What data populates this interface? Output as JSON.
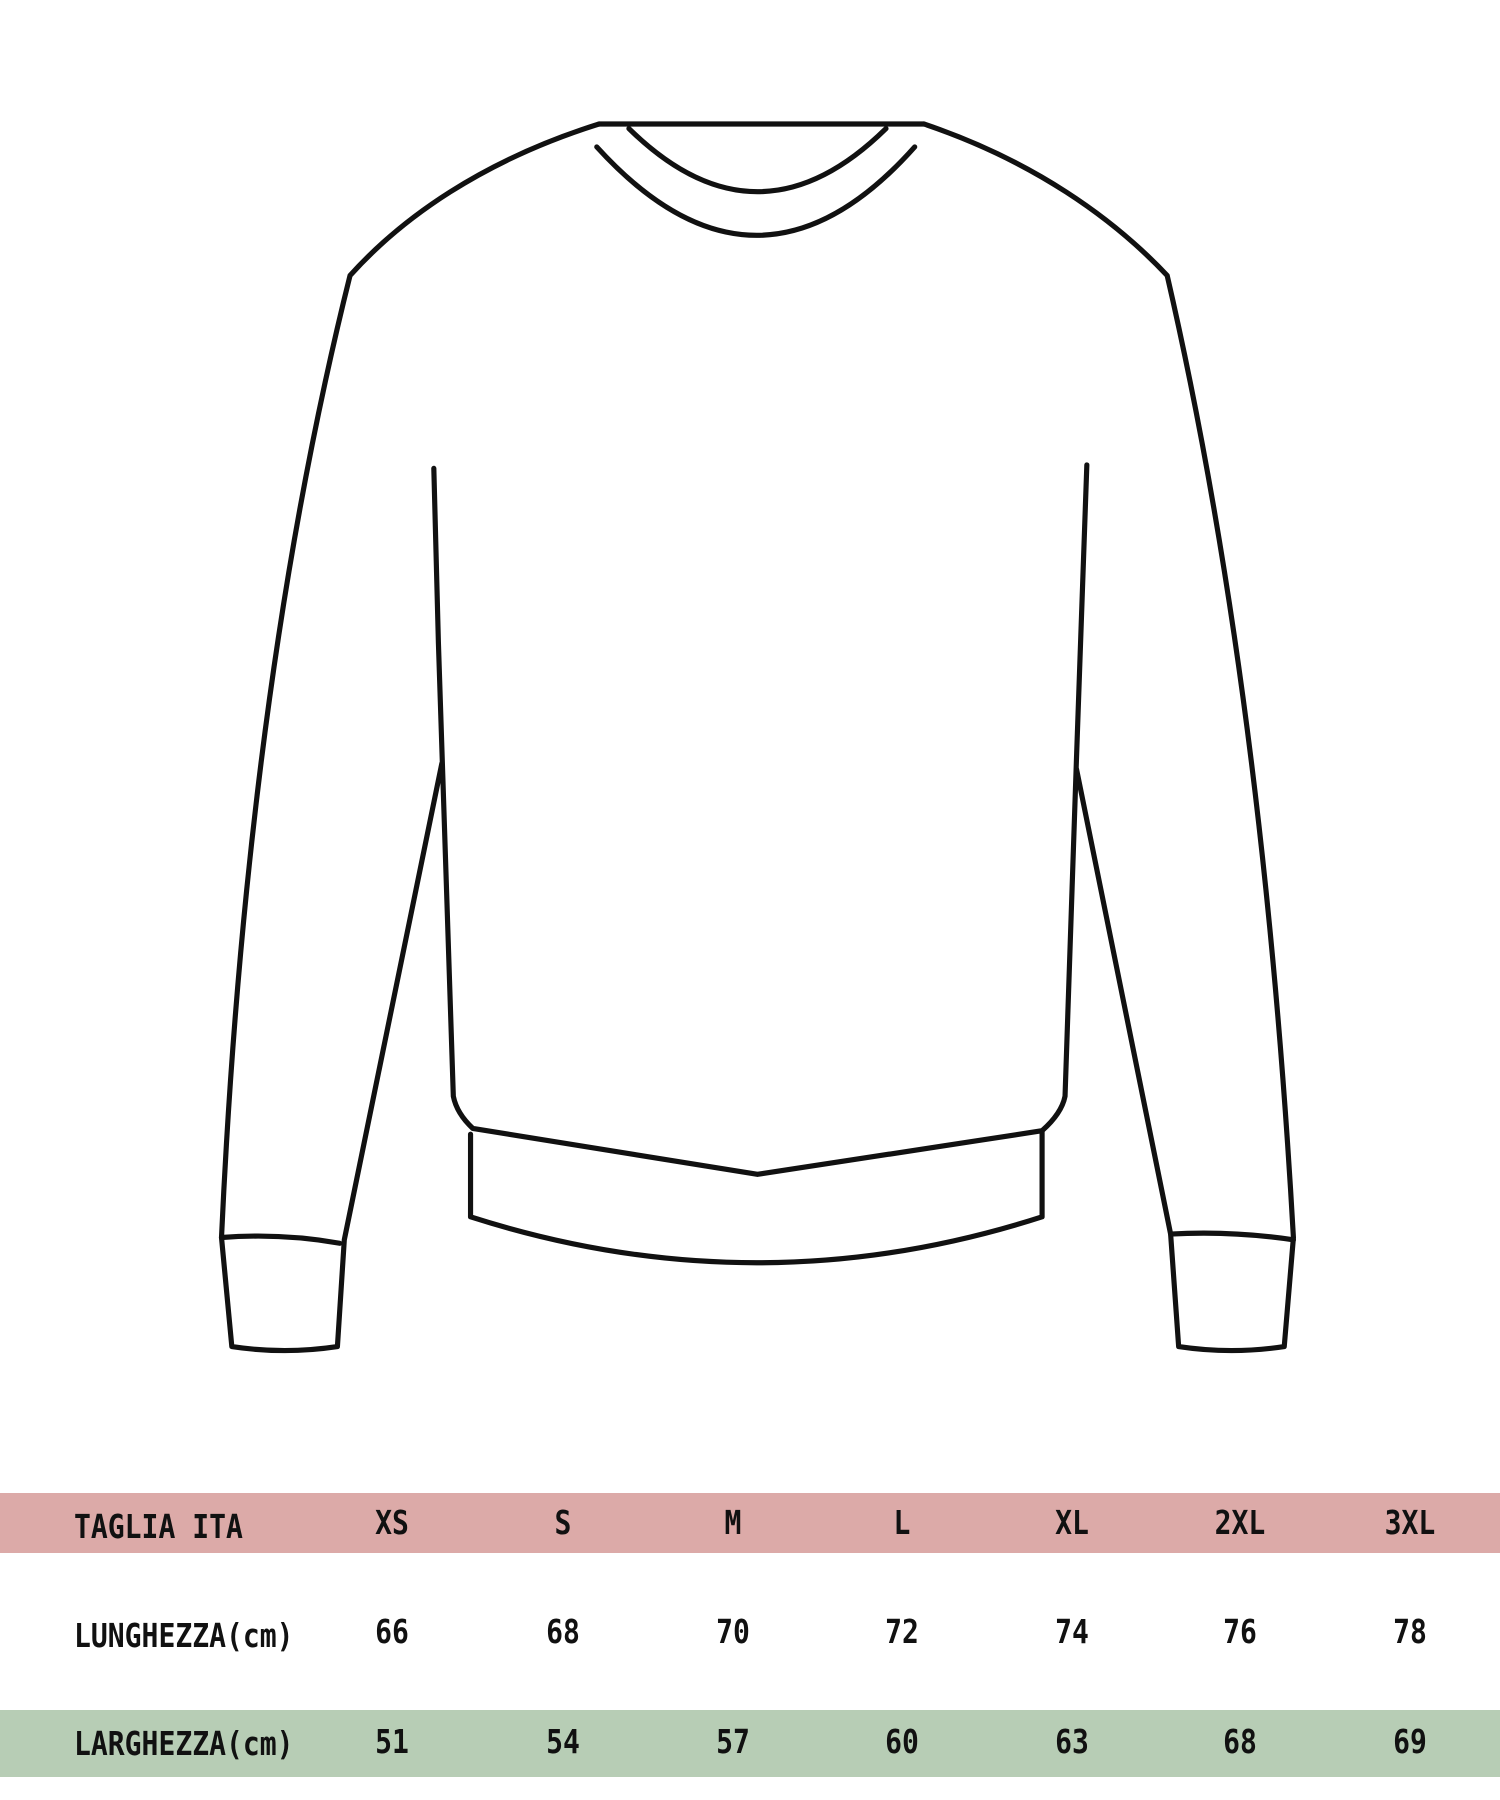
{
  "colors": {
    "header_band": "#dcaaa8",
    "width_band": "#b7cdb5",
    "outline": "#111111"
  },
  "illustration": "sweater-outline",
  "table": {
    "header": {
      "label": "TAGLIA ITA",
      "sizes": [
        "XS",
        "S",
        "M",
        "L",
        "XL",
        "2XL",
        "3XL"
      ]
    },
    "rows": [
      {
        "label": "LUNGHEZZA(cm)",
        "values": [
          "66",
          "68",
          "70",
          "72",
          "74",
          "76",
          "78"
        ]
      },
      {
        "label": "LARGHEZZA(cm)",
        "values": [
          "51",
          "54",
          "57",
          "60",
          "63",
          "68",
          "69"
        ]
      }
    ]
  }
}
